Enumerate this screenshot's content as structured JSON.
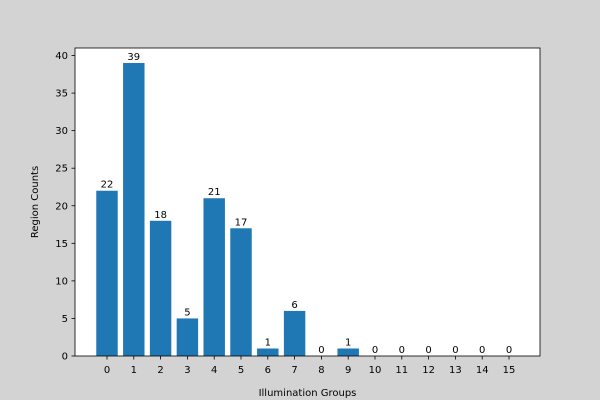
{
  "chart_data": {
    "type": "bar",
    "categories": [
      "0",
      "1",
      "2",
      "3",
      "4",
      "5",
      "6",
      "7",
      "8",
      "9",
      "10",
      "11",
      "12",
      "13",
      "14",
      "15"
    ],
    "values": [
      22,
      39,
      18,
      5,
      21,
      17,
      1,
      6,
      0,
      1,
      0,
      0,
      0,
      0,
      0,
      0
    ],
    "data_labels": [
      "22",
      "39",
      "18",
      "5",
      "21",
      "17",
      "1",
      "6",
      "0",
      "1",
      "0",
      "0",
      "0",
      "0",
      "0",
      "0"
    ],
    "xlabel": "Illumination Groups",
    "ylabel": "Region Counts",
    "ylim": [
      0,
      41
    ],
    "yticks": [
      "0",
      "5",
      "10",
      "15",
      "20",
      "25",
      "30",
      "35",
      "40"
    ],
    "ytick_values": [
      0,
      5,
      10,
      15,
      20,
      25,
      30,
      35,
      40
    ],
    "grid": false,
    "colors": {
      "bar": "#1f77b4",
      "figure_bg": "#d3d3d3",
      "axes_bg": "#ffffff"
    }
  }
}
